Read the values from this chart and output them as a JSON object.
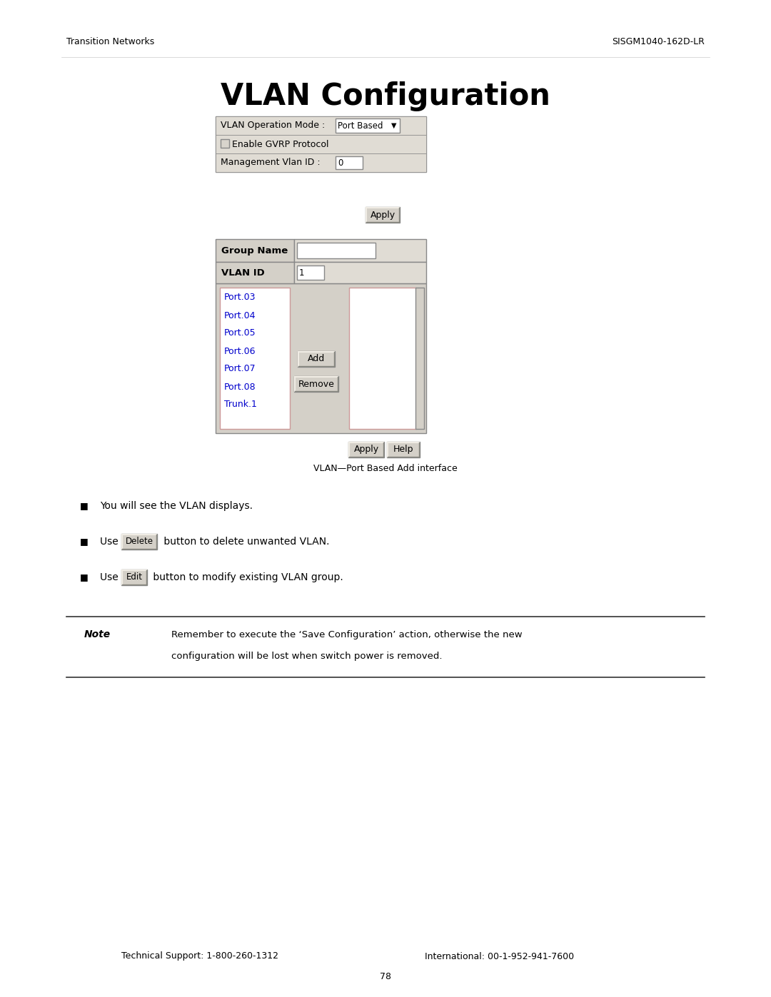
{
  "header_left": "Transition Networks",
  "header_right": "SISGM1040-162D-LR",
  "title": "VLAN Configuration",
  "vlan_op_label": "VLAN Operation Mode :",
  "vlan_op_value": "Port Based",
  "gvrp_label": "Enable GVRP Protocol",
  "mgmt_label": "Management Vlan ID :",
  "mgmt_value": "0",
  "apply_btn": "Apply",
  "group_name_label": "Group Name",
  "vlan_id_label": "VLAN ID",
  "vlan_id_value": "1",
  "ports": [
    "Port.03",
    "Port.04",
    "Port.05",
    "Port.06",
    "Port.07",
    "Port.08",
    "Trunk.1"
  ],
  "add_btn": "Add",
  "remove_btn": "Remove",
  "apply_btn2": "Apply",
  "help_btn": "Help",
  "caption": "VLAN—Port Based Add interface",
  "bullet1": "You will see the VLAN displays.",
  "bullet2_pre": "Use ",
  "bullet2_btn": "Delete",
  "bullet2_post": " button to delete unwanted VLAN.",
  "bullet3_pre": "Use ",
  "bullet3_btn": "Edit",
  "bullet3_post": " button to modify existing VLAN group.",
  "note_label": "Note",
  "note_text1": "Remember to execute the ‘Save Configuration’ action, otherwise the new",
  "note_text2": "configuration will be lost when switch power is removed.",
  "footer_left": "Technical Support: 1-800-260-1312",
  "footer_right": "International: 00-1-952-941-7600",
  "page_num": "78",
  "bg_color": "#ffffff",
  "panel_bg": "#d4d0c8",
  "panel_border": "#888888",
  "input_bg": "#ffffff",
  "text_color": "#000000",
  "panel_row_bg": "#e0dcd4"
}
